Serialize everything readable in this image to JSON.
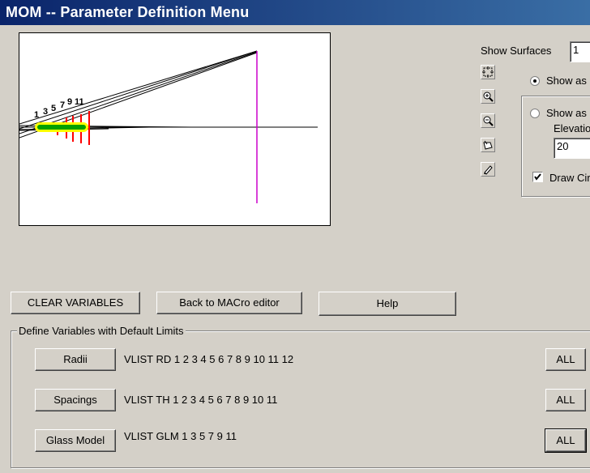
{
  "window": {
    "title": "MOM -- Parameter Definition Menu"
  },
  "display_panel": {
    "show_surfaces_label": "Show Surfaces",
    "show_surfaces_value": "1",
    "option_show_as_1": "Show as",
    "option_show_as_2": "Show as",
    "elevation_label": "Elevatio",
    "elevation_value": "20",
    "draw_circle_label": "Draw Cir",
    "draw_circle_checked": true,
    "selected_option": 1
  },
  "lens_view": {
    "surface_labels": [
      "1",
      "3",
      "5",
      "7",
      "9",
      "11"
    ]
  },
  "buttons": {
    "clear_variables": "CLEAR VARIABLES",
    "back_to_macro": "Back to MACro editor",
    "help": "Help"
  },
  "define_group": {
    "title": "Define Variables with Default Limits",
    "rows": [
      {
        "button": "Radii",
        "command": "VLIST RD 1 2 3 4 5 6 7 8 9 10 11 12",
        "all": "ALL"
      },
      {
        "button": "Spacings",
        "command": "VLIST TH 1 2 3 4 5 6 7 8 9 10 11",
        "all": "ALL"
      },
      {
        "button": "Glass Model",
        "command": "VLIST GLM 1 3 5 7 9 11",
        "all": "ALL"
      }
    ]
  },
  "colors": {
    "title_bar": "#0a246a",
    "rays": "#000000",
    "image_plane": "#cc00cc",
    "lens_surfaces": "#ff0000",
    "lens_body": "#00a000",
    "highlight": "#ffff00"
  }
}
